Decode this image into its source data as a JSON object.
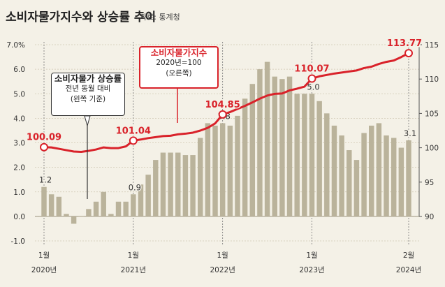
{
  "title": "소비자물가지수와 상승률 추이",
  "source": "자료: 통계청",
  "annotations": {
    "rate": {
      "line1": "소비자물가 상승률",
      "line2": "전년 동월 대비",
      "line3": "(왼쪽 기준)"
    },
    "cpi": {
      "line1": "소비자물가지수",
      "line2": "2020년=100",
      "line3": "(오른쪽)"
    }
  },
  "colors": {
    "bars": "#bab39b",
    "line": "#d9222a",
    "background": "#f4f1e7"
  },
  "chart_data": {
    "type": "bar",
    "x_tick_labels": [
      {
        "month": "1월",
        "year": "2020년"
      },
      {
        "month": "1월",
        "year": "2021년"
      },
      {
        "month": "1월",
        "year": "2022년"
      },
      {
        "month": "1월",
        "year": "2023년"
      },
      {
        "month": "2월",
        "year": "2024년"
      }
    ],
    "months": [
      "2020-01",
      "2020-02",
      "2020-03",
      "2020-04",
      "2020-05",
      "2020-06",
      "2020-07",
      "2020-08",
      "2020-09",
      "2020-10",
      "2020-11",
      "2020-12",
      "2021-01",
      "2021-02",
      "2021-03",
      "2021-04",
      "2021-05",
      "2021-06",
      "2021-07",
      "2021-08",
      "2021-09",
      "2021-10",
      "2021-11",
      "2021-12",
      "2022-01",
      "2022-02",
      "2022-03",
      "2022-04",
      "2022-05",
      "2022-06",
      "2022-07",
      "2022-08",
      "2022-09",
      "2022-10",
      "2022-11",
      "2022-12",
      "2023-01",
      "2023-02",
      "2023-03",
      "2023-04",
      "2023-05",
      "2023-06",
      "2023-07",
      "2023-08",
      "2023-09",
      "2023-10",
      "2023-11",
      "2023-12",
      "2024-01",
      "2024-02"
    ],
    "left_axis": {
      "ticks": [
        "7.0%",
        "6.0",
        "5.0",
        "4.0",
        "3.0",
        "2.0",
        "1.0",
        "0.0",
        "-1.0"
      ],
      "min": -1.0,
      "max": 7.0
    },
    "right_axis": {
      "ticks": [
        "115",
        "110",
        "105",
        "100",
        "95",
        "90"
      ],
      "min": 90,
      "max": 115
    },
    "series": [
      {
        "axis": "left",
        "kind": "bar",
        "values": [
          1.2,
          0.9,
          0.8,
          0.1,
          -0.3,
          0.0,
          0.3,
          0.6,
          1.0,
          0.1,
          0.6,
          0.6,
          0.9,
          1.3,
          1.7,
          2.3,
          2.6,
          2.6,
          2.6,
          2.5,
          2.5,
          3.2,
          3.8,
          3.7,
          3.8,
          3.7,
          4.1,
          4.8,
          5.4,
          6.0,
          6.3,
          5.7,
          5.6,
          5.7,
          5.0,
          5.0,
          5.0,
          4.7,
          4.2,
          3.7,
          3.3,
          2.7,
          2.3,
          3.4,
          3.7,
          3.8,
          3.3,
          3.2,
          2.8,
          3.1
        ]
      },
      {
        "axis": "right",
        "kind": "line",
        "values": [
          100.09,
          100.05,
          99.85,
          99.65,
          99.45,
          99.4,
          99.55,
          99.75,
          100.05,
          99.95,
          99.95,
          100.2,
          101.04,
          101.2,
          101.4,
          101.55,
          101.7,
          101.75,
          101.95,
          102.05,
          102.2,
          102.5,
          102.9,
          103.55,
          104.85,
          105.2,
          105.65,
          106.1,
          106.6,
          107.15,
          107.6,
          107.85,
          107.9,
          108.35,
          108.6,
          108.9,
          110.07,
          110.4,
          110.6,
          110.8,
          110.95,
          111.1,
          111.25,
          111.6,
          111.8,
          112.2,
          112.5,
          112.7,
          113.2,
          113.77
        ]
      }
    ],
    "bar_labels": [
      {
        "index": 0,
        "text": "1.2"
      },
      {
        "index": 12,
        "text": "0.9"
      },
      {
        "index": 24,
        "text": "3.8"
      },
      {
        "index": 36,
        "text": "5.0"
      },
      {
        "index": 49,
        "text": "3.1"
      }
    ],
    "line_labels": [
      {
        "index": 0,
        "text": "100.09"
      },
      {
        "index": 12,
        "text": "101.04"
      },
      {
        "index": 24,
        "text": "104.85"
      },
      {
        "index": 36,
        "text": "110.07"
      },
      {
        "index": 49,
        "text": "113.77"
      }
    ]
  }
}
